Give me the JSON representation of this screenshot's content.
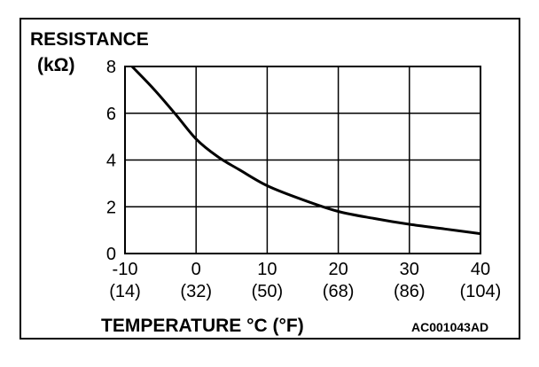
{
  "chart_data": {
    "type": "line",
    "title": "",
    "ylabel_line1": "RESISTANCE",
    "ylabel_line2": "(kΩ)",
    "xlabel": "TEMPERATURE °C (°F)",
    "reference_code": "AC001043AD",
    "xlim": [
      -10,
      40
    ],
    "ylim": [
      0,
      8
    ],
    "grid": true,
    "x_ticks": [
      {
        "value": -10,
        "label": "-10",
        "sublabel": "(14)"
      },
      {
        "value": 0,
        "label": "0",
        "sublabel": "(32)"
      },
      {
        "value": 10,
        "label": "10",
        "sublabel": "(50)"
      },
      {
        "value": 20,
        "label": "20",
        "sublabel": "(68)"
      },
      {
        "value": 30,
        "label": "30",
        "sublabel": "(86)"
      },
      {
        "value": 40,
        "label": "40",
        "sublabel": "(104)"
      }
    ],
    "y_ticks": [
      {
        "value": 0,
        "label": "0"
      },
      {
        "value": 2,
        "label": "2"
      },
      {
        "value": 4,
        "label": "4"
      },
      {
        "value": 6,
        "label": "6"
      },
      {
        "value": 8,
        "label": "8"
      }
    ],
    "series": [
      {
        "x": [
          -9,
          -6,
          -3,
          0,
          3,
          6,
          10,
          15,
          20,
          25,
          30,
          35,
          40
        ],
        "y": [
          8.0,
          7.05,
          6.0,
          4.9,
          4.15,
          3.6,
          2.9,
          2.3,
          1.8,
          1.5,
          1.25,
          1.05,
          0.85
        ]
      }
    ]
  }
}
